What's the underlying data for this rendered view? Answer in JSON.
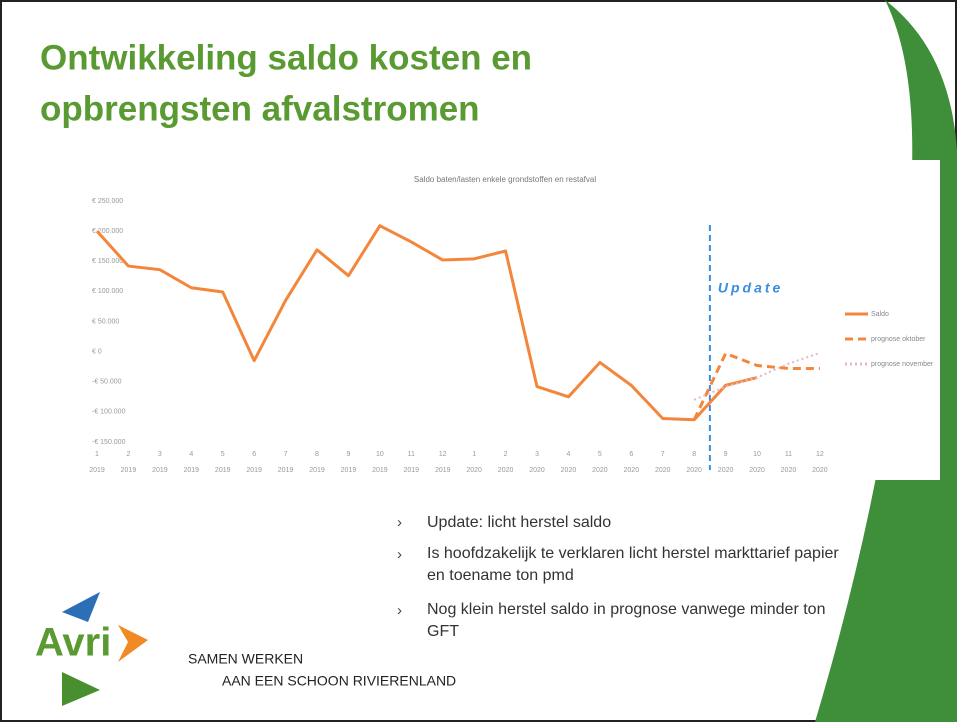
{
  "header": {
    "title": [
      "Ontwikkeling saldo kosten en",
      "opbrengsten afvalstromen"
    ]
  },
  "chart_data": {
    "type": "line",
    "title": "Saldo baten/lasten enkele grondstoffen en restafval",
    "categories": [
      "1 2019",
      "2 2019",
      "3 2019",
      "4 2019",
      "5 2019",
      "6 2019",
      "7 2019",
      "8 2019",
      "9 2019",
      "10 2019",
      "11 2019",
      "12 2019",
      "1 2020",
      "2 2020",
      "3 2020",
      "4 2020",
      "5 2020",
      "6 2020",
      "7 2020",
      "8 2020",
      "9 2020",
      "10 2020",
      "11 2020",
      "12 2020"
    ],
    "series": [
      {
        "name": "Saldo",
        "color": "#f4863b",
        "style": "solid",
        "values": [
          200000,
          142000,
          136000,
          106000,
          99000,
          -15000,
          85000,
          169000,
          126000,
          209000,
          182000,
          152000,
          154000,
          167000,
          -58000,
          -75000,
          -18000,
          -56000,
          -111000,
          -113000,
          -56000,
          -43000,
          null,
          null
        ]
      },
      {
        "name": "prognose oktober",
        "color": "#f4863b",
        "style": "dashed",
        "values": [
          null,
          null,
          null,
          null,
          null,
          null,
          null,
          null,
          null,
          null,
          null,
          null,
          null,
          null,
          null,
          null,
          null,
          null,
          null,
          -113000,
          -3000,
          -23000,
          -28000,
          -28000
        ]
      },
      {
        "name": "prognose november",
        "color": "#e8b4c8",
        "style": "dotted",
        "values": [
          null,
          null,
          null,
          null,
          null,
          null,
          null,
          null,
          null,
          null,
          null,
          null,
          null,
          null,
          null,
          null,
          null,
          null,
          null,
          -80000,
          -58000,
          -43000,
          -20000,
          -2000
        ]
      }
    ],
    "ylim": [
      -150000,
      250000
    ],
    "yticks": [
      {
        "value": 250000,
        "label": "€ 250.000"
      },
      {
        "value": 200000,
        "label": "€ 200.000"
      },
      {
        "value": 150000,
        "label": "€ 150.000"
      },
      {
        "value": 100000,
        "label": "€ 100.000"
      },
      {
        "value": 50000,
        "label": "€ 50.000"
      },
      {
        "value": 0,
        "label": "€ 0"
      },
      {
        "value": -50000,
        "label": "-€ 50.000"
      },
      {
        "value": -100000,
        "label": "-€ 100.000"
      },
      {
        "value": -150000,
        "label": "-€ 150.000"
      }
    ],
    "annotation": "Update",
    "legend": "right"
  },
  "bullets": [
    "Update: licht herstel saldo",
    "Is hoofdzakelijk te verklaren licht herstel markttarief papier en toename ton pmd",
    "Nog klein herstel saldo in prognose vanwege minder ton GFT"
  ],
  "logo": {
    "name": "Avri",
    "tagline": [
      "SAMEN WERKEN",
      "AAN EEN SCHOON RIVIERENLAND"
    ]
  }
}
